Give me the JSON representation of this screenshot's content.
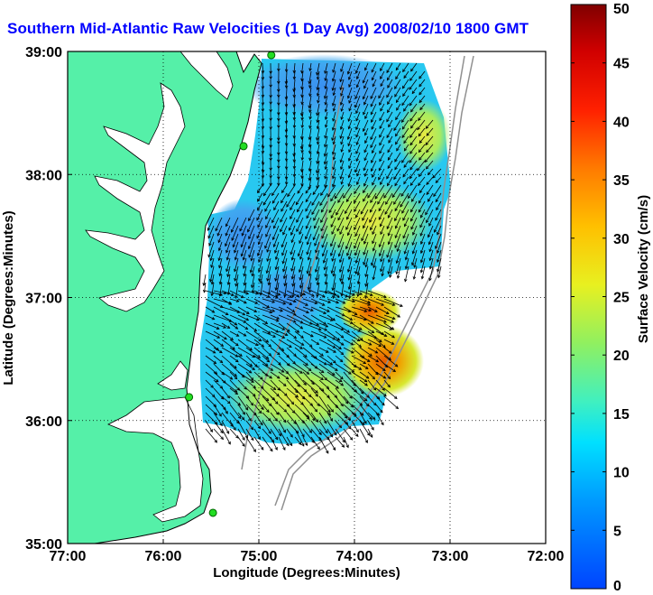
{
  "title": "Southern Mid-Atlantic Raw Velocities (1 Day Avg) 2008/02/10 1800 GMT",
  "colors": {
    "land": "#55f0a8",
    "vector": "#000000",
    "grid": "#000000",
    "title": "#0000ff",
    "isobath": "#909090"
  },
  "chart_data": {
    "type": "heatmap",
    "xlabel": "Longitude (Degrees:Minutes)",
    "ylabel": "Latitude (Degrees:Minutes)",
    "xlim": [
      -77,
      -72
    ],
    "ylim": [
      35,
      39
    ],
    "x_ticks": [
      {
        "value": -77,
        "label": "77:00"
      },
      {
        "value": -76,
        "label": "76:00"
      },
      {
        "value": -75,
        "label": "75:00"
      },
      {
        "value": -74,
        "label": "74:00"
      },
      {
        "value": -73,
        "label": "73:00"
      },
      {
        "value": -72,
        "label": "72:00"
      }
    ],
    "y_ticks": [
      {
        "value": 35,
        "label": "35:00"
      },
      {
        "value": 36,
        "label": "36:00"
      },
      {
        "value": 37,
        "label": "37:00"
      },
      {
        "value": 38,
        "label": "38:00"
      },
      {
        "value": 39,
        "label": "39:00"
      }
    ],
    "colorbar": {
      "label": "Surface Velocity (cm/s)",
      "min": 0,
      "max": 50,
      "ticks": [
        0,
        5,
        10,
        15,
        20,
        25,
        30,
        35,
        40,
        45,
        50
      ]
    },
    "sites": [
      {
        "lon": -74.87,
        "lat": 38.97
      },
      {
        "lon": -75.16,
        "lat": 38.23
      },
      {
        "lon": -75.73,
        "lat": 36.19
      },
      {
        "lon": -75.48,
        "lat": 35.25
      }
    ]
  }
}
